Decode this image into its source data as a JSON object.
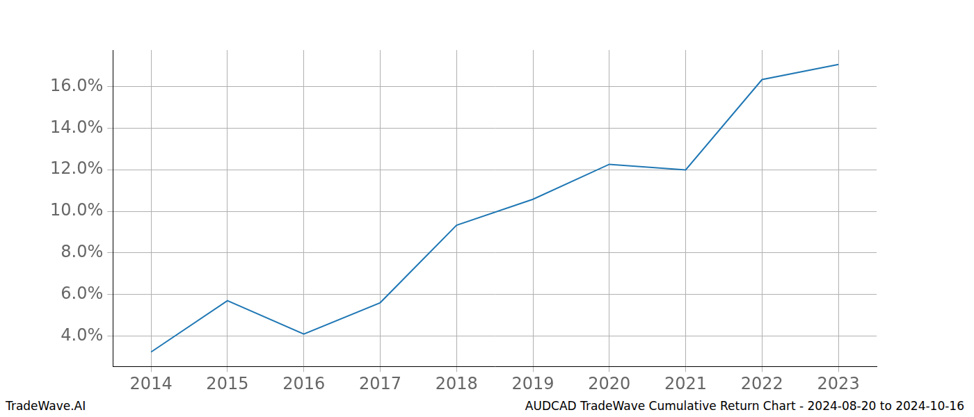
{
  "chart_data": {
    "type": "line",
    "categories": [
      "2014",
      "2015",
      "2016",
      "2017",
      "2018",
      "2019",
      "2020",
      "2021",
      "2022",
      "2023"
    ],
    "values": [
      3.24,
      5.71,
      4.1,
      5.61,
      9.33,
      10.58,
      12.26,
      11.99,
      16.33,
      17.06
    ],
    "color": "#1f77b4",
    "ylim": [
      2.55,
      17.75
    ],
    "yticks": [
      {
        "value": 4,
        "label": "4.0%"
      },
      {
        "value": 6,
        "label": "6.0%"
      },
      {
        "value": 8,
        "label": "8.0%"
      },
      {
        "value": 10,
        "label": "10.0%"
      },
      {
        "value": 12,
        "label": "12.0%"
      },
      {
        "value": 14,
        "label": "14.0%"
      },
      {
        "value": 16,
        "label": "16.0%"
      }
    ],
    "grid": true,
    "annotations": [
      "TradeWave.AI",
      "AUDCAD TradeWave Cumulative Return Chart - 2024-08-20 to 2024-10-16"
    ]
  }
}
